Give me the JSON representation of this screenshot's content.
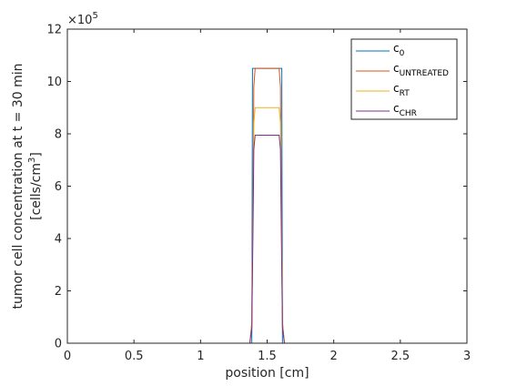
{
  "chart_data": {
    "type": "line",
    "xlabel": "position [cm]",
    "ylabel_line1": "tumor cell concentration at t = 30 min",
    "ylabel_line2_main": "[cells/cm",
    "ylabel_line2_sup": "3",
    "ylabel_line2_end": "]",
    "y_exponent_base": "×10",
    "y_exponent_power": "5",
    "xlim": [
      0,
      3
    ],
    "ylim": [
      0,
      12
    ],
    "y_scale_factor": 100000,
    "grid": false,
    "legend_position": "top-right",
    "xticks": [
      {
        "v": 0,
        "t": "0"
      },
      {
        "v": 0.5,
        "t": "0.5"
      },
      {
        "v": 1,
        "t": "1"
      },
      {
        "v": 1.5,
        "t": "1.5"
      },
      {
        "v": 2,
        "t": "2"
      },
      {
        "v": 2.5,
        "t": "2.5"
      },
      {
        "v": 3,
        "t": "3"
      }
    ],
    "yticks": [
      {
        "v": 0,
        "t": "0"
      },
      {
        "v": 2,
        "t": "2"
      },
      {
        "v": 4,
        "t": "4"
      },
      {
        "v": 6,
        "t": "6"
      },
      {
        "v": 8,
        "t": "8"
      },
      {
        "v": 10,
        "t": "10"
      },
      {
        "v": 12,
        "t": "12"
      }
    ],
    "series": [
      {
        "name_main": "c",
        "name_sub": "0",
        "color": "#0072BD",
        "x": [
          0,
          1.385,
          1.39,
          1.395,
          1.605,
          1.61,
          1.615,
          3
        ],
        "y": [
          0,
          0,
          10.5,
          10.5,
          10.5,
          10.5,
          0,
          0
        ]
      },
      {
        "name_main": "c",
        "name_sub": "UNTREATED",
        "color": "#D95319",
        "x": [
          0,
          1.37,
          1.385,
          1.395,
          1.4,
          1.41,
          1.59,
          1.6,
          1.605,
          1.615,
          1.63,
          3
        ],
        "y": [
          0,
          0,
          0.8,
          6.5,
          9.8,
          10.5,
          10.5,
          9.8,
          6.5,
          0.8,
          0,
          0
        ]
      },
      {
        "name_main": "c",
        "name_sub": "RT",
        "color": "#EDB120",
        "x": [
          0,
          1.37,
          1.385,
          1.395,
          1.4,
          1.41,
          1.59,
          1.6,
          1.605,
          1.615,
          1.63,
          3
        ],
        "y": [
          0,
          0,
          0.7,
          5.6,
          8.4,
          9.0,
          9.0,
          8.4,
          5.6,
          0.7,
          0,
          0
        ]
      },
      {
        "name_main": "c",
        "name_sub": "CHR",
        "color": "#7E2F8E",
        "x": [
          0,
          1.37,
          1.385,
          1.395,
          1.4,
          1.41,
          1.59,
          1.6,
          1.605,
          1.615,
          1.63,
          3
        ],
        "y": [
          0,
          0,
          0.6,
          4.9,
          7.4,
          7.95,
          7.95,
          7.4,
          4.9,
          0.6,
          0,
          0
        ]
      }
    ]
  }
}
